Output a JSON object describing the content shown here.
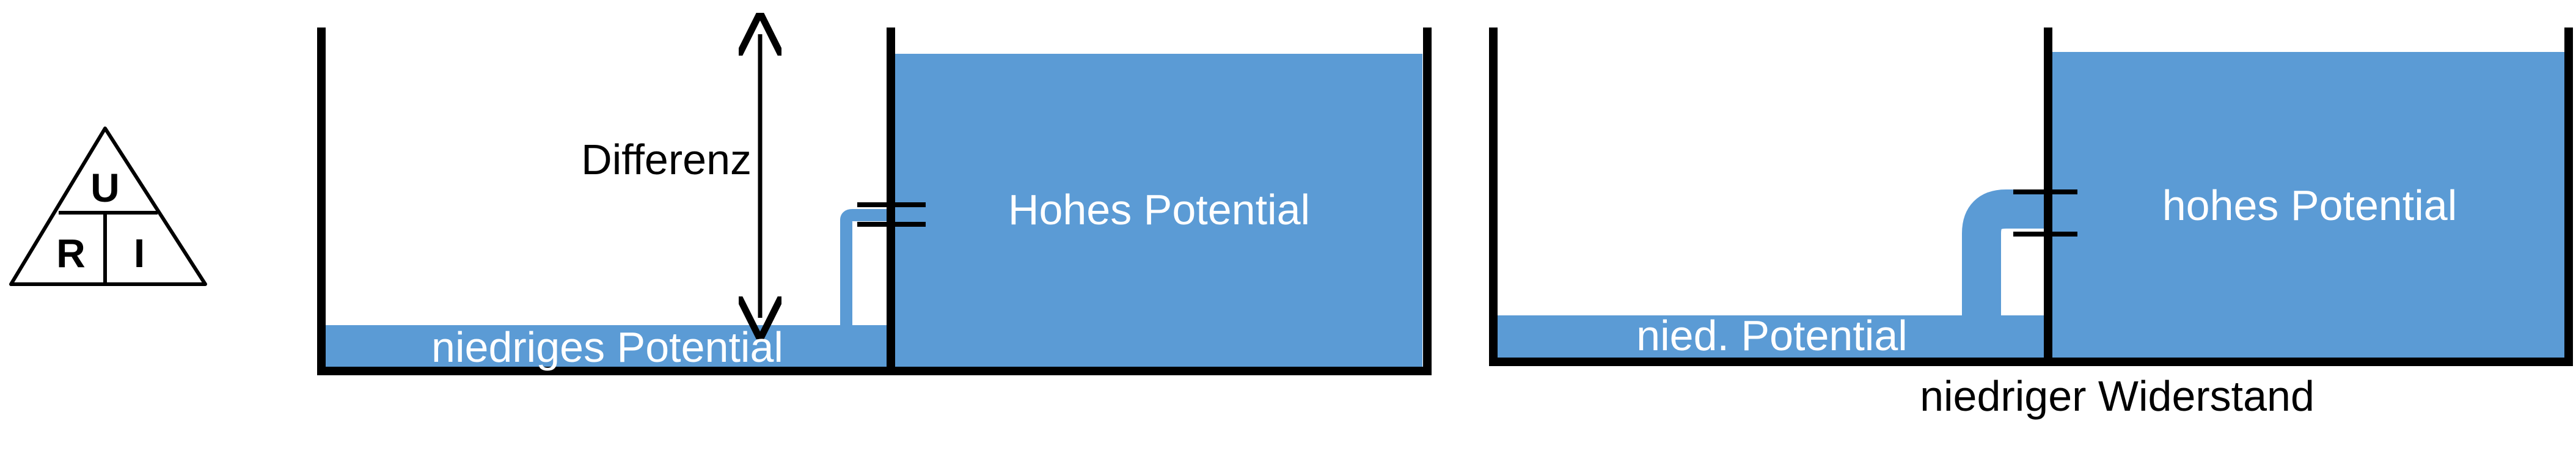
{
  "colors": {
    "water": "#5b9bd5",
    "stroke": "#000000",
    "label_on_water": "#ffffff",
    "label_default": "#000000",
    "background": "#ffffff"
  },
  "triangle": {
    "top": "U",
    "bottom_left": "R",
    "bottom_right": "I"
  },
  "left_diagram": {
    "difference_label": "Differenz",
    "high_label": "Hohes Potential",
    "low_label": "niedriges Potential"
  },
  "right_diagram": {
    "high_label": "hohes Potential",
    "low_label": "nied. Potential",
    "caption": "niedriger Widerstand"
  }
}
